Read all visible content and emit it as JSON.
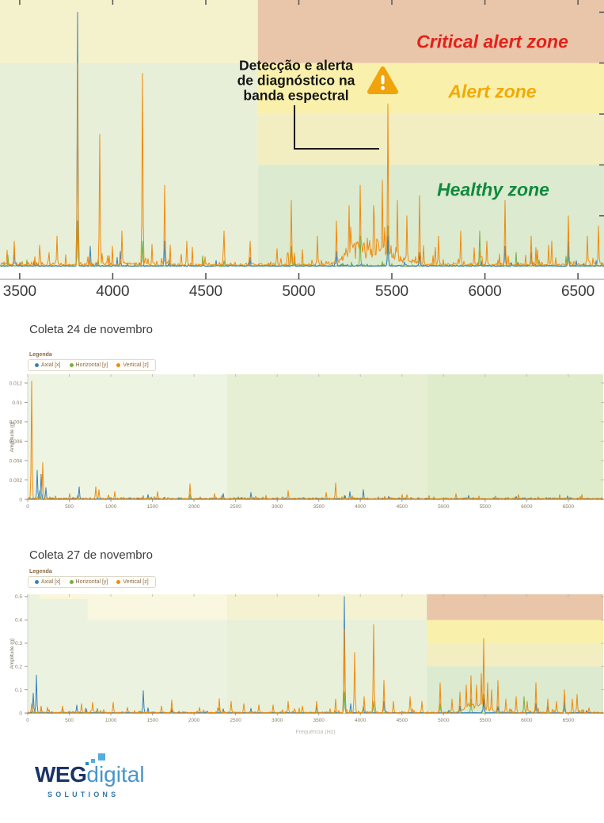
{
  "page": {
    "background": "#ffffff"
  },
  "zone_overlay": {
    "labels": [
      {
        "id": "critical",
        "text": "Critical alert zone",
        "color": "#e3211a"
      },
      {
        "id": "alert",
        "text": "Alert zone",
        "color": "#f3a900"
      },
      {
        "id": "healthy",
        "text": "Healthy zone",
        "color": "#108a3e"
      }
    ],
    "annotation": {
      "lines": [
        "Detecção e alerta",
        "de diagnóstico na",
        "banda espectral"
      ],
      "color": "#151515"
    },
    "warning_icon": {
      "color": "#f0a30a"
    }
  },
  "legend": {
    "title": "Legenda"
  },
  "logo": {
    "weg": "WEG",
    "digital": "digital",
    "solutions": "SOLUTIONS",
    "navy": "#1b3465",
    "blue": "#4796cb",
    "light_blue": "#55acdf",
    "mid_blue": "#2f86c0",
    "solutions_color": "#2e76ad"
  },
  "chart_data": [
    {
      "id": "spectral-band-zoom",
      "type": "line",
      "title": "",
      "xlabel": "",
      "ylabel": "",
      "x_domain": [
        3394,
        6640
      ],
      "y_domain": [
        0,
        0.524
      ],
      "x_ticks": [
        3500,
        4000,
        4500,
        5000,
        5500,
        6000,
        6500
      ],
      "y_ticks": [
        0.1,
        0.2,
        0.3,
        0.4,
        0.5
      ],
      "grid": false,
      "legend_position": "none",
      "zones": [
        {
          "x": [
            3394,
            4780
          ],
          "y": [
            0.4,
            0.524
          ],
          "color": "#f4f1cd"
        },
        {
          "x": [
            3394,
            4780
          ],
          "y": [
            0,
            0.4
          ],
          "color": "#e7efd8"
        },
        {
          "x": [
            4780,
            6640
          ],
          "y": [
            0.4,
            0.524
          ],
          "color": "#e9c5a9"
        },
        {
          "x": [
            4780,
            6640
          ],
          "y": [
            0.3,
            0.4
          ],
          "color": "#f9f0ab"
        },
        {
          "x": [
            4780,
            6640
          ],
          "y": [
            0.2,
            0.3
          ],
          "color": "#f3edc2"
        },
        {
          "x": [
            4780,
            6640
          ],
          "y": [
            0,
            0.2
          ],
          "color": "#dcead0"
        }
      ],
      "series": [
        {
          "name": "Axial [x]",
          "color": "#3a80bd",
          "noise": 0.004,
          "spike_p": 0.07,
          "spike_amp": 0.022,
          "humps": [],
          "peaks": [
            [
              3470,
              0.028
            ],
            [
              3810,
              0.5
            ],
            [
              3880,
              0.04
            ],
            [
              4040,
              0.03
            ],
            [
              4280,
              0.05
            ],
            [
              5200,
              0.03
            ],
            [
              5480,
              0.06
            ],
            [
              5650,
              0.028
            ],
            [
              6110,
              0.04
            ],
            [
              6250,
              0.028
            ],
            [
              6450,
              0.05
            ]
          ]
        },
        {
          "name": "Horizontal [y]",
          "color": "#76b041",
          "noise": 0.004,
          "spike_p": 0.06,
          "spike_amp": 0.028,
          "humps": [],
          "peaks": [
            [
              3810,
              0.09
            ],
            [
              4160,
              0.05
            ],
            [
              4960,
              0.04
            ],
            [
              5330,
              0.06
            ],
            [
              5480,
              0.08
            ],
            [
              5970,
              0.07
            ],
            [
              6450,
              0.03
            ]
          ]
        },
        {
          "name": "Vertical [z]",
          "color": "#ef8b0d",
          "noise": 0.011,
          "spike_p": 0.13,
          "spike_amp": 0.05,
          "humps": [
            [
              5420,
              140,
              0.05
            ],
            [
              5290,
              70,
              0.03
            ]
          ],
          "peaks": [
            [
              3470,
              0.05
            ],
            [
              3700,
              0.06
            ],
            [
              3810,
              0.4
            ],
            [
              3930,
              0.26
            ],
            [
              4050,
              0.07
            ],
            [
              4160,
              0.38
            ],
            [
              4280,
              0.16
            ],
            [
              4400,
              0.05
            ],
            [
              4600,
              0.07
            ],
            [
              4740,
              0.05
            ],
            [
              4960,
              0.13
            ],
            [
              5100,
              0.06
            ],
            [
              5200,
              0.09
            ],
            [
              5270,
              0.12
            ],
            [
              5330,
              0.16
            ],
            [
              5400,
              0.12
            ],
            [
              5450,
              0.17
            ],
            [
              5480,
              0.32
            ],
            [
              5530,
              0.13
            ],
            [
              5580,
              0.1
            ],
            [
              5650,
              0.14
            ],
            [
              5750,
              0.06
            ],
            [
              5870,
              0.07
            ],
            [
              6010,
              0.05
            ],
            [
              6110,
              0.13
            ],
            [
              6250,
              0.06
            ],
            [
              6360,
              0.05
            ],
            [
              6450,
              0.1
            ],
            [
              6550,
              0.06
            ],
            [
              6610,
              0.08
            ]
          ]
        }
      ]
    },
    {
      "id": "coleta-24",
      "type": "line",
      "title": "Coleta 24 de novembro",
      "xlabel": "",
      "ylabel": "Amplitude (g)",
      "x_domain": [
        0,
        6920
      ],
      "y_domain": [
        0,
        0.0129
      ],
      "x_ticks": [
        0,
        500,
        1000,
        1500,
        2000,
        2500,
        3000,
        3500,
        4000,
        4500,
        5000,
        5500,
        6000,
        6500
      ],
      "y_ticks": [
        0,
        0.002,
        0.004,
        0.006,
        0.008,
        0.01,
        0.012
      ],
      "grid": false,
      "legend_position": "top-left",
      "zones": [
        {
          "x": [
            0,
            2400
          ],
          "y": [
            0,
            0.0129
          ],
          "color": "#eef4e2"
        },
        {
          "x": [
            2400,
            4800
          ],
          "y": [
            0,
            0.0129
          ],
          "color": "#e6efd3"
        },
        {
          "x": [
            4800,
            6920
          ],
          "y": [
            0,
            0.0129
          ],
          "color": "#dfeccb"
        }
      ],
      "series": [
        {
          "name": "Axial [x]",
          "color": "#3a80bd",
          "noise": 0.00012,
          "spike_p": 0.05,
          "spike_amp": 0.0004,
          "humps": [],
          "peaks": [
            [
              110,
              0.003
            ],
            [
              165,
              0.0026
            ],
            [
              215,
              0.0012
            ],
            [
              620,
              0.0013
            ],
            [
              1450,
              0.0005
            ],
            [
              2350,
              0.0006
            ],
            [
              2680,
              0.0007
            ],
            [
              3870,
              0.0008
            ],
            [
              4040,
              0.001
            ],
            [
              5300,
              0.0004
            ]
          ]
        },
        {
          "name": "Horizontal [y]",
          "color": "#76b041",
          "noise": 0.0001,
          "spike_p": 0.04,
          "spike_amp": 0.0002,
          "humps": [],
          "peaks": [
            [
              140,
              0.0009
            ],
            [
              600,
              0.0004
            ],
            [
              1950,
              0.0005
            ],
            [
              3810,
              0.0004
            ]
          ]
        },
        {
          "name": "Vertical [z]",
          "color": "#ef8b0d",
          "noise": 0.00022,
          "spike_p": 0.09,
          "spike_amp": 0.0005,
          "humps": [],
          "peaks": [
            [
              50,
              0.0122
            ],
            [
              185,
              0.0038
            ],
            [
              500,
              0.0006
            ],
            [
              820,
              0.0013
            ],
            [
              860,
              0.001
            ],
            [
              1050,
              0.0008
            ],
            [
              1560,
              0.0008
            ],
            [
              1950,
              0.0016
            ],
            [
              2250,
              0.0006
            ],
            [
              3130,
              0.0009
            ],
            [
              3590,
              0.0007
            ],
            [
              3700,
              0.0017
            ],
            [
              4500,
              0.0005
            ],
            [
              5150,
              0.0006
            ],
            [
              5900,
              0.0005
            ],
            [
              6400,
              0.0005
            ]
          ]
        }
      ]
    },
    {
      "id": "coleta-27",
      "type": "line",
      "title": "Coleta 27 de novembro",
      "xlabel": "Frequência (Hz)",
      "ylabel": "Amplitude (g)",
      "x_domain": [
        0,
        6920
      ],
      "y_domain": [
        0,
        0.51
      ],
      "x_ticks": [
        0,
        500,
        1000,
        1500,
        2000,
        2500,
        3000,
        3500,
        4000,
        4500,
        5000,
        5500,
        6000,
        6500
      ],
      "y_ticks": [
        0,
        0.1,
        0.2,
        0.3,
        0.4,
        0.5
      ],
      "grid": false,
      "legend_position": "top-left",
      "zones": [
        {
          "x": [
            0,
            6920
          ],
          "y": [
            0,
            0.51
          ],
          "color": "#ecf2e0"
        },
        {
          "x": [
            140,
            720
          ],
          "y": [
            0.49,
            0.51
          ],
          "color": "#faf6da"
        },
        {
          "x": [
            720,
            2400
          ],
          "y": [
            0.4,
            0.51
          ],
          "color": "#faf7e0"
        },
        {
          "x": [
            2400,
            4800
          ],
          "y": [
            0.4,
            0.51
          ],
          "color": "#f5f2d1"
        },
        {
          "x": [
            2400,
            4800
          ],
          "y": [
            0,
            0.4
          ],
          "color": "#e8f0d9"
        },
        {
          "x": [
            4800,
            6920
          ],
          "y": [
            0.4,
            0.51
          ],
          "color": "#e9c5a9"
        },
        {
          "x": [
            4800,
            6920
          ],
          "y": [
            0.3,
            0.4
          ],
          "color": "#f9f0ab"
        },
        {
          "x": [
            4800,
            6920
          ],
          "y": [
            0.2,
            0.3
          ],
          "color": "#f3edc2"
        },
        {
          "x": [
            4800,
            6920
          ],
          "y": [
            0,
            0.2
          ],
          "color": "#dcead0"
        }
      ],
      "series": [
        {
          "name": "Axial [x]",
          "color": "#3a80bd",
          "noise": 0.0025,
          "spike_p": 0.04,
          "spike_amp": 0.012,
          "humps": [],
          "peaks": [
            [
              70,
              0.085
            ],
            [
              100,
              0.163
            ],
            [
              420,
              0.02
            ],
            [
              590,
              0.034
            ],
            [
              700,
              0.018
            ],
            [
              1390,
              0.096
            ],
            [
              1450,
              0.022
            ],
            [
              2350,
              0.018
            ],
            [
              2680,
              0.02
            ],
            [
              3470,
              0.028
            ],
            [
              3810,
              0.5
            ],
            [
              3880,
              0.04
            ],
            [
              4040,
              0.03
            ],
            [
              4280,
              0.05
            ],
            [
              5200,
              0.03
            ],
            [
              5480,
              0.06
            ],
            [
              5650,
              0.028
            ],
            [
              6110,
              0.04
            ],
            [
              6250,
              0.028
            ],
            [
              6450,
              0.05
            ]
          ]
        },
        {
          "name": "Horizontal [y]",
          "color": "#76b041",
          "noise": 0.0022,
          "spike_p": 0.03,
          "spike_amp": 0.01,
          "humps": [],
          "peaks": [
            [
              160,
              0.02
            ],
            [
              840,
              0.02
            ],
            [
              1730,
              0.02
            ],
            [
              2300,
              0.02
            ],
            [
              3810,
              0.09
            ],
            [
              4160,
              0.05
            ],
            [
              4960,
              0.04
            ],
            [
              5330,
              0.06
            ],
            [
              5480,
              0.08
            ],
            [
              5970,
              0.07
            ],
            [
              6450,
              0.03
            ]
          ]
        },
        {
          "name": "Vertical [z]",
          "color": "#ef8b0d",
          "noise": 0.006,
          "spike_p": 0.1,
          "spike_amp": 0.025,
          "humps": [
            [
              5420,
              140,
              0.04
            ],
            [
              5290,
              70,
              0.02
            ]
          ],
          "peaks": [
            [
              50,
              0.04
            ],
            [
              160,
              0.03
            ],
            [
              240,
              0.025
            ],
            [
              420,
              0.03
            ],
            [
              650,
              0.04
            ],
            [
              780,
              0.046
            ],
            [
              1030,
              0.046
            ],
            [
              1200,
              0.024
            ],
            [
              1610,
              0.03
            ],
            [
              1730,
              0.056
            ],
            [
              2070,
              0.024
            ],
            [
              2300,
              0.062
            ],
            [
              2450,
              0.05
            ],
            [
              2600,
              0.04
            ],
            [
              2780,
              0.035
            ],
            [
              2950,
              0.035
            ],
            [
              3130,
              0.05
            ],
            [
              3300,
              0.03
            ],
            [
              3470,
              0.05
            ],
            [
              3700,
              0.06
            ],
            [
              3810,
              0.36
            ],
            [
              3930,
              0.26
            ],
            [
              4050,
              0.07
            ],
            [
              4160,
              0.38
            ],
            [
              4280,
              0.14
            ],
            [
              4400,
              0.05
            ],
            [
              4600,
              0.07
            ],
            [
              4740,
              0.05
            ],
            [
              4960,
              0.13
            ],
            [
              5100,
              0.06
            ],
            [
              5200,
              0.09
            ],
            [
              5270,
              0.12
            ],
            [
              5330,
              0.16
            ],
            [
              5400,
              0.12
            ],
            [
              5450,
              0.17
            ],
            [
              5480,
              0.32
            ],
            [
              5530,
              0.13
            ],
            [
              5580,
              0.1
            ],
            [
              5650,
              0.14
            ],
            [
              5750,
              0.06
            ],
            [
              5870,
              0.07
            ],
            [
              6010,
              0.05
            ],
            [
              6110,
              0.13
            ],
            [
              6250,
              0.06
            ],
            [
              6360,
              0.05
            ],
            [
              6450,
              0.1
            ],
            [
              6550,
              0.06
            ],
            [
              6610,
              0.08
            ]
          ]
        }
      ]
    }
  ]
}
